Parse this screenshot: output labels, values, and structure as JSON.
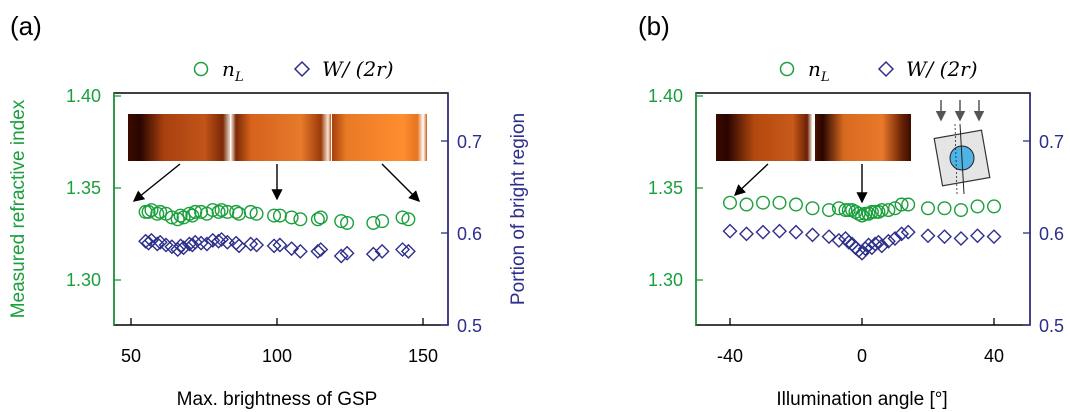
{
  "colors": {
    "green": "#1a9f3c",
    "blue": "#2d2f8a",
    "axis": "#000000",
    "arrow": "#000000",
    "inset_arrow": "#555555",
    "inset_circle": "#4fb3e6"
  },
  "chart_data": [
    {
      "type": "scatter",
      "panel_label": "(a)",
      "xlabel": "Max. brightness of GSP",
      "ylabel_left": "Measured refractive index",
      "ylabel_right": "Portion of bright region",
      "xlim": [
        50,
        150
      ],
      "ylim_left": [
        1.28,
        1.4
      ],
      "ylim_right": [
        0.5,
        0.74
      ],
      "xticks": [
        "50",
        "100",
        "150"
      ],
      "yticks_left": [
        "1.30",
        "1.35",
        "1.40"
      ],
      "yticks_right": [
        "0.5",
        "0.6",
        "0.7"
      ],
      "legend": [
        "n_L",
        "W/(2r)"
      ],
      "series": [
        {
          "name": "n_L",
          "axis": "left",
          "marker": "circle",
          "x": [
            55,
            56,
            57,
            59,
            60,
            62,
            64,
            66,
            67,
            68,
            70,
            71,
            72,
            74,
            76,
            78,
            80,
            81,
            83,
            86,
            87,
            91,
            93,
            99,
            101,
            105,
            108,
            114,
            115,
            122,
            124,
            133,
            136,
            143,
            145
          ],
          "y": [
            1.337,
            1.337,
            1.338,
            1.336,
            1.337,
            1.336,
            1.334,
            1.333,
            1.335,
            1.334,
            1.336,
            1.335,
            1.337,
            1.337,
            1.336,
            1.338,
            1.337,
            1.338,
            1.337,
            1.337,
            1.336,
            1.337,
            1.336,
            1.335,
            1.335,
            1.334,
            1.333,
            1.333,
            1.334,
            1.332,
            1.331,
            1.331,
            1.332,
            1.334,
            1.333
          ]
        },
        {
          "name": "W/(2r)",
          "axis": "right",
          "marker": "diamond",
          "x": [
            55,
            56,
            57,
            59,
            60,
            62,
            64,
            66,
            67,
            68,
            70,
            71,
            72,
            74,
            76,
            78,
            80,
            81,
            83,
            86,
            87,
            91,
            93,
            99,
            101,
            105,
            108,
            114,
            115,
            122,
            124,
            133,
            136,
            143,
            145
          ],
          "y": [
            0.591,
            0.589,
            0.592,
            0.588,
            0.59,
            0.587,
            0.585,
            0.582,
            0.586,
            0.584,
            0.588,
            0.587,
            0.59,
            0.589,
            0.588,
            0.592,
            0.591,
            0.593,
            0.59,
            0.589,
            0.586,
            0.588,
            0.587,
            0.586,
            0.587,
            0.583,
            0.58,
            0.58,
            0.582,
            0.575,
            0.578,
            0.577,
            0.58,
            0.582,
            0.58
          ]
        }
      ]
    },
    {
      "type": "scatter",
      "panel_label": "(b)",
      "xlabel": "Illumination angle [°]",
      "xlim": [
        -50,
        50
      ],
      "ylim_left": [
        1.28,
        1.4
      ],
      "ylim_right": [
        0.5,
        0.74
      ],
      "xticks": [
        "-40",
        "0",
        "40"
      ],
      "yticks_left": [
        "1.30",
        "1.35",
        "1.40"
      ],
      "yticks_right": [
        "0.5",
        "0.6",
        "0.7"
      ],
      "legend": [
        "n_L",
        "W/(2r)"
      ],
      "series": [
        {
          "name": "n_L",
          "axis": "left",
          "marker": "circle",
          "x": [
            -40,
            -35,
            -30,
            -25,
            -20,
            -15,
            -10,
            -7,
            -5,
            -4,
            -3,
            -2,
            -1,
            0,
            1,
            2,
            3,
            4,
            5,
            6,
            8,
            10,
            12,
            14,
            20,
            25,
            30,
            35,
            40
          ],
          "y": [
            1.342,
            1.341,
            1.342,
            1.342,
            1.341,
            1.339,
            1.338,
            1.339,
            1.338,
            1.338,
            1.338,
            1.337,
            1.336,
            1.335,
            1.336,
            1.336,
            1.337,
            1.337,
            1.337,
            1.338,
            1.338,
            1.339,
            1.341,
            1.341,
            1.339,
            1.339,
            1.338,
            1.34,
            1.34
          ]
        },
        {
          "name": "W/(2r)",
          "axis": "right",
          "marker": "diamond",
          "x": [
            -40,
            -35,
            -30,
            -25,
            -20,
            -15,
            -10,
            -7,
            -5,
            -4,
            -3,
            -2,
            -1,
            0,
            1,
            2,
            3,
            4,
            5,
            6,
            8,
            10,
            12,
            14,
            20,
            25,
            30,
            35,
            40
          ],
          "y": [
            0.602,
            0.599,
            0.601,
            0.602,
            0.601,
            0.598,
            0.596,
            0.592,
            0.594,
            0.59,
            0.588,
            0.584,
            0.581,
            0.578,
            0.583,
            0.587,
            0.584,
            0.588,
            0.59,
            0.586,
            0.591,
            0.594,
            0.599,
            0.601,
            0.597,
            0.596,
            0.594,
            0.597,
            0.596
          ]
        }
      ]
    }
  ]
}
